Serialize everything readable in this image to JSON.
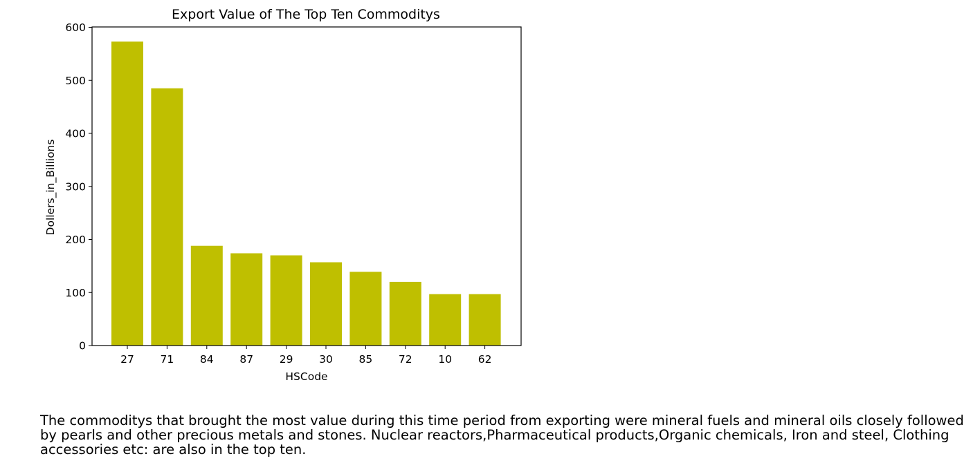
{
  "chart_data": {
    "type": "bar",
    "title": "Export Value of The Top Ten Commoditys",
    "xlabel": "HSCode",
    "ylabel": "Dollers_in_Billions",
    "categories": [
      "27",
      "71",
      "84",
      "87",
      "29",
      "30",
      "85",
      "72",
      "10",
      "62"
    ],
    "values": [
      573,
      485,
      188,
      174,
      170,
      157,
      139,
      120,
      97,
      97
    ],
    "ylim": [
      0,
      600
    ],
    "yticks": [
      "0",
      "100",
      "200",
      "300",
      "400",
      "500",
      "600"
    ],
    "bar_color": "#bfbf00",
    "grid": false,
    "legend": "none"
  },
  "caption": {
    "text": "The commoditys that brought the most value during this time period from exporting were mineral fuels and mineral oils closely followed by pearls and other precious metals and stones. Nuclear reactors,Pharmaceutical products,Organic chemicals, Iron and steel, Clothing accessories etc: are also in the top ten."
  }
}
